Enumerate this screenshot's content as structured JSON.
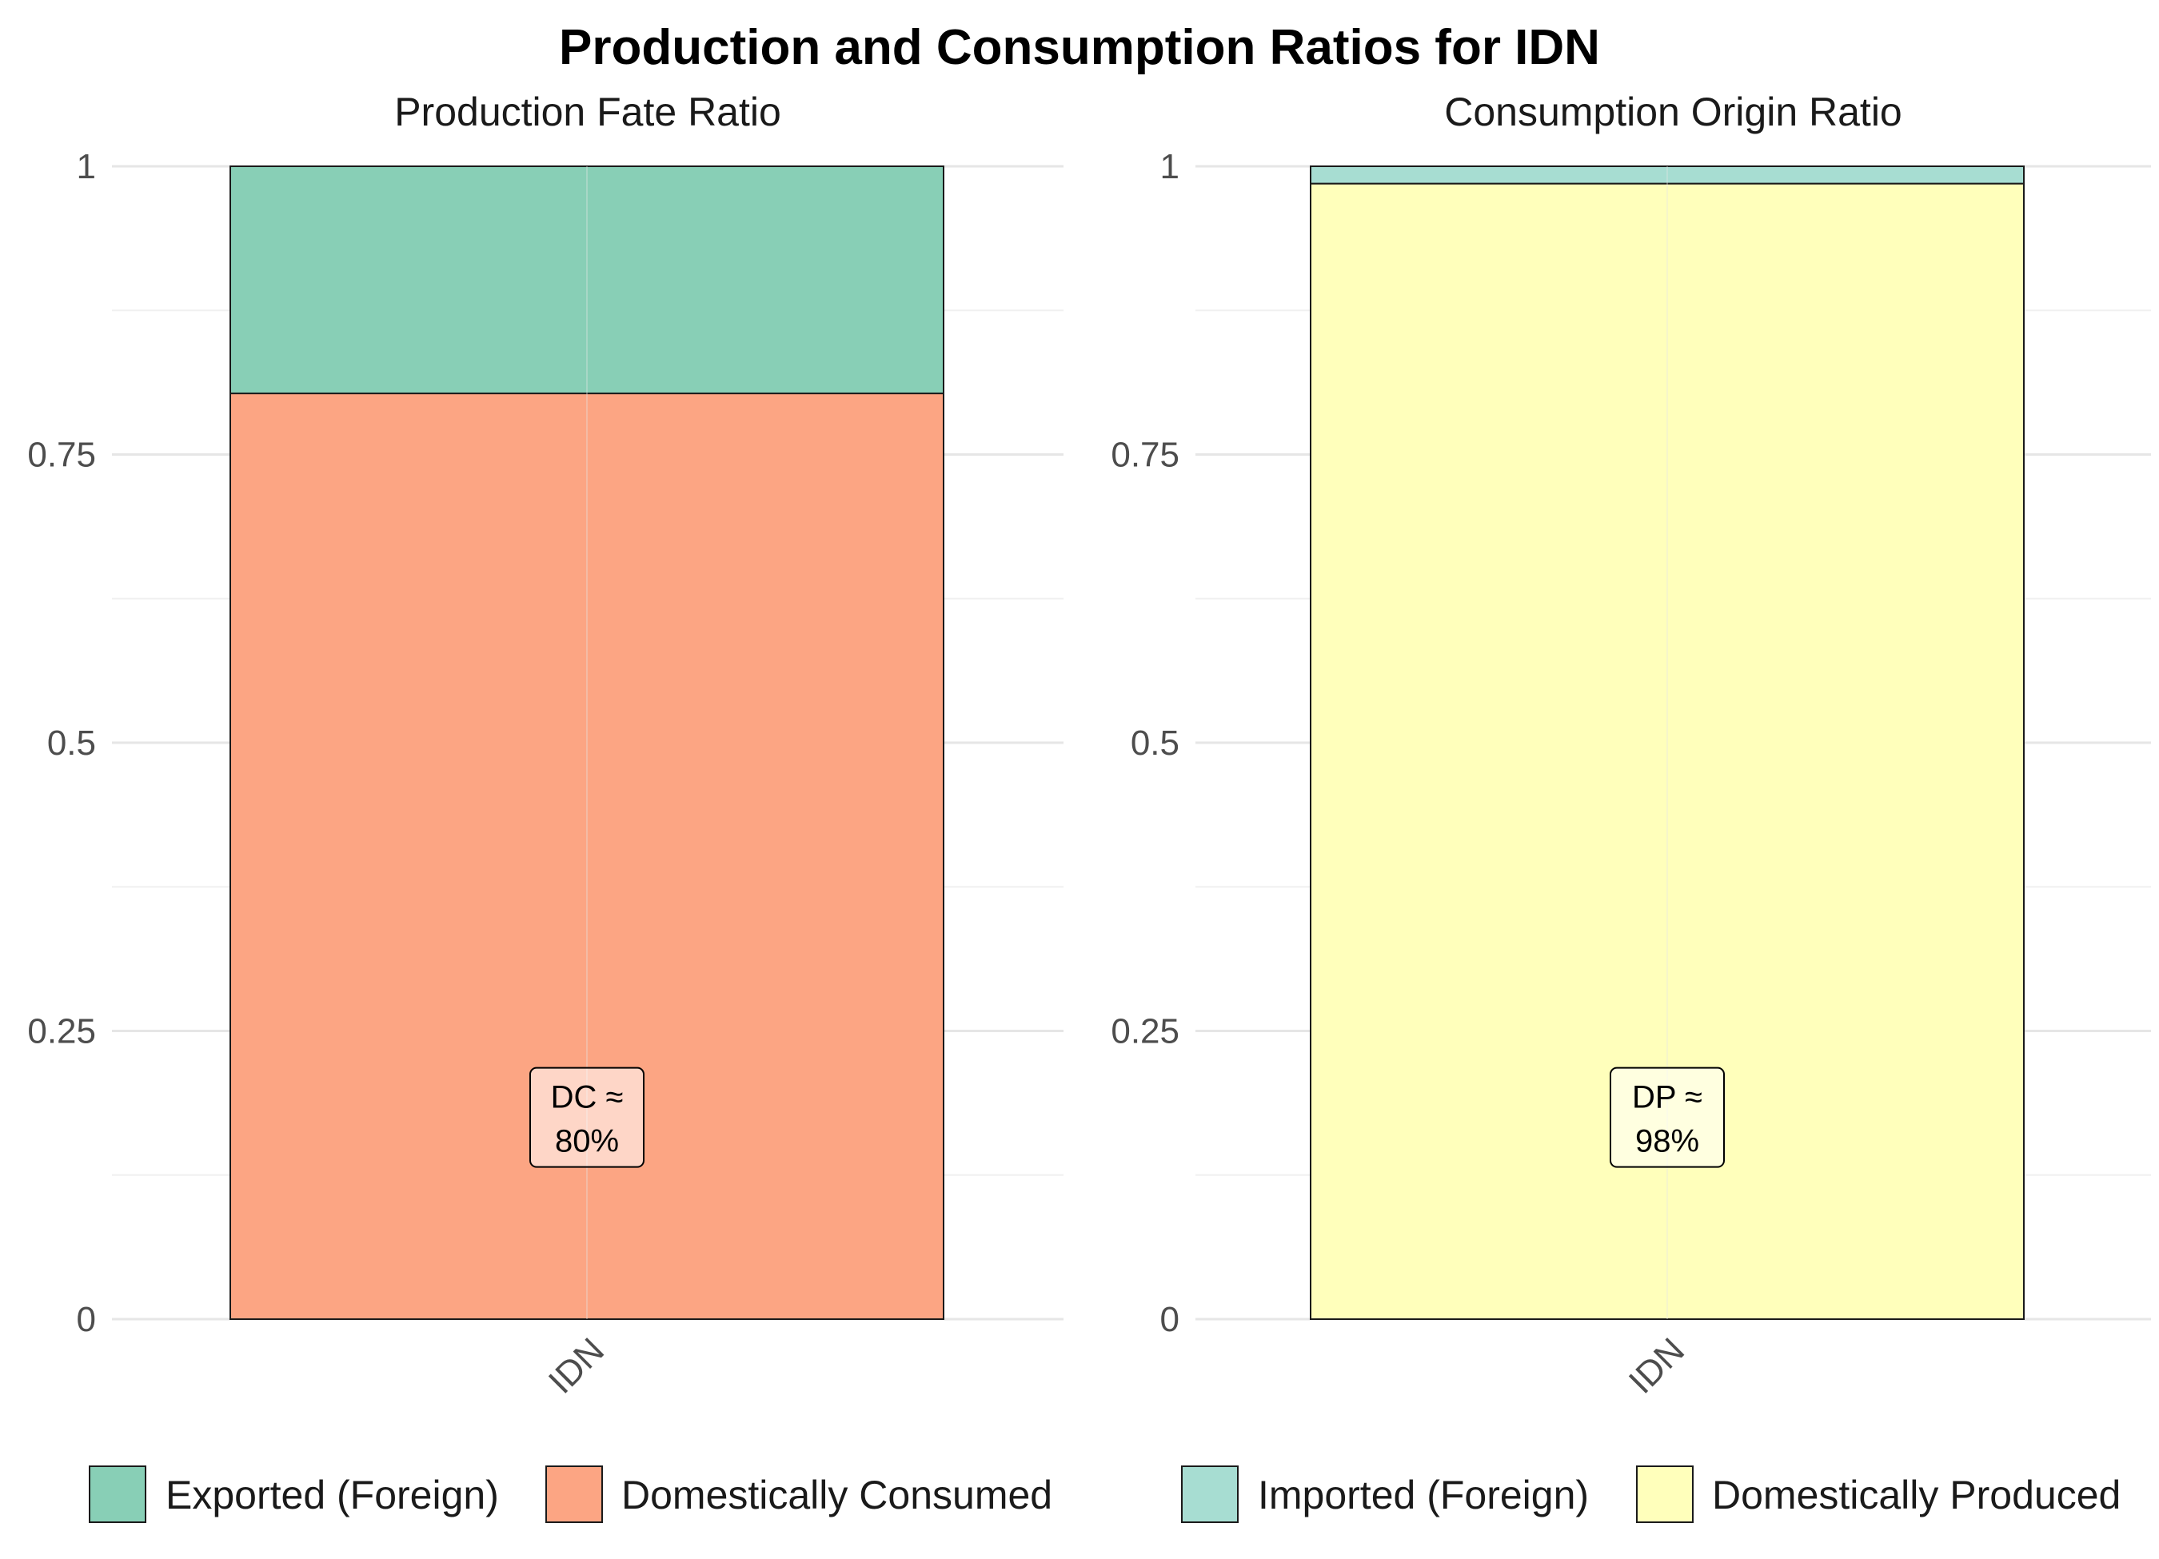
{
  "title": "Production and Consumption Ratios for IDN",
  "chart_data": [
    {
      "type": "bar",
      "stacked": true,
      "title": "Production Fate Ratio",
      "categories": [
        "IDN"
      ],
      "ylim": [
        0,
        1
      ],
      "yticks": [
        "0",
        "0.25",
        "0.5",
        "0.75",
        "1"
      ],
      "grid": true,
      "legend_position": "bottom",
      "series": [
        {
          "name": "Domestically Consumed",
          "values": [
            0.803
          ],
          "color": "#FCA583"
        },
        {
          "name": "Exported (Foreign)",
          "values": [
            0.197
          ],
          "color": "#88CFB6"
        }
      ],
      "annotation": {
        "line1": "DC ≈",
        "line2": "80%",
        "y": 0.175
      }
    },
    {
      "type": "bar",
      "stacked": true,
      "title": "Consumption Origin Ratio",
      "categories": [
        "IDN"
      ],
      "ylim": [
        0,
        1
      ],
      "yticks": [
        "0",
        "0.25",
        "0.5",
        "0.75",
        "1"
      ],
      "grid": true,
      "legend_position": "bottom",
      "series": [
        {
          "name": "Domestically Produced",
          "values": [
            0.985
          ],
          "color": "#FFFFBB"
        },
        {
          "name": "Imported (Foreign)",
          "values": [
            0.015
          ],
          "color": "#A7DDD2"
        }
      ],
      "annotation": {
        "line1": "DP ≈",
        "line2": "98%",
        "y": 0.175
      }
    }
  ],
  "legends": [
    {
      "items": [
        {
          "label": "Exported (Foreign)",
          "color": "#88CFB6"
        },
        {
          "label": "Domestically Consumed",
          "color": "#FCA583"
        }
      ]
    },
    {
      "items": [
        {
          "label": "Imported (Foreign)",
          "color": "#A7DDD2"
        },
        {
          "label": "Domestically Produced",
          "color": "#FFFFBB"
        }
      ]
    }
  ]
}
